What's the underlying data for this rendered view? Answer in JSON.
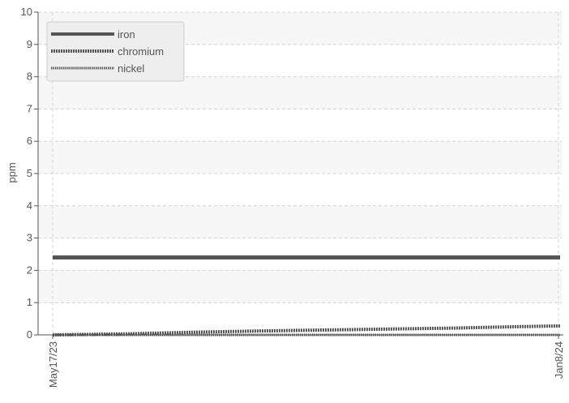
{
  "chart_data": {
    "type": "line",
    "title": "",
    "xlabel": "",
    "ylabel": "ppm",
    "ylim": [
      0,
      10
    ],
    "yticks": [
      "0",
      "1",
      "2",
      "3",
      "4",
      "5",
      "6",
      "7",
      "8",
      "9",
      "10"
    ],
    "x_range": [
      "2023-05-17",
      "2024-01-08"
    ],
    "xtick_labels": [
      "May17/23",
      "Jan8/24"
    ],
    "grid": true,
    "legend_placement": "top-left",
    "series": [
      {
        "name": "iron",
        "color": "#555555",
        "style": "solid",
        "x": [
          "2023-05-17",
          "2024-01-08"
        ],
        "y": [
          2.4,
          2.4
        ]
      },
      {
        "name": "chromium",
        "color": "#555555",
        "style": "dotted",
        "x": [
          "2023-05-17",
          "2023-06-20",
          "2023-07-20",
          "2023-08-20",
          "2023-09-20",
          "2023-10-20",
          "2023-11-20",
          "2023-12-15",
          "2024-01-08"
        ],
        "y": [
          0.0,
          0.03,
          0.08,
          0.12,
          0.15,
          0.18,
          0.21,
          0.25,
          0.28
        ]
      },
      {
        "name": "nickel",
        "color": "#555555",
        "style": "dotted",
        "x": [
          "2023-05-17",
          "2024-01-08"
        ],
        "y": [
          0.0,
          0.0
        ]
      }
    ]
  }
}
